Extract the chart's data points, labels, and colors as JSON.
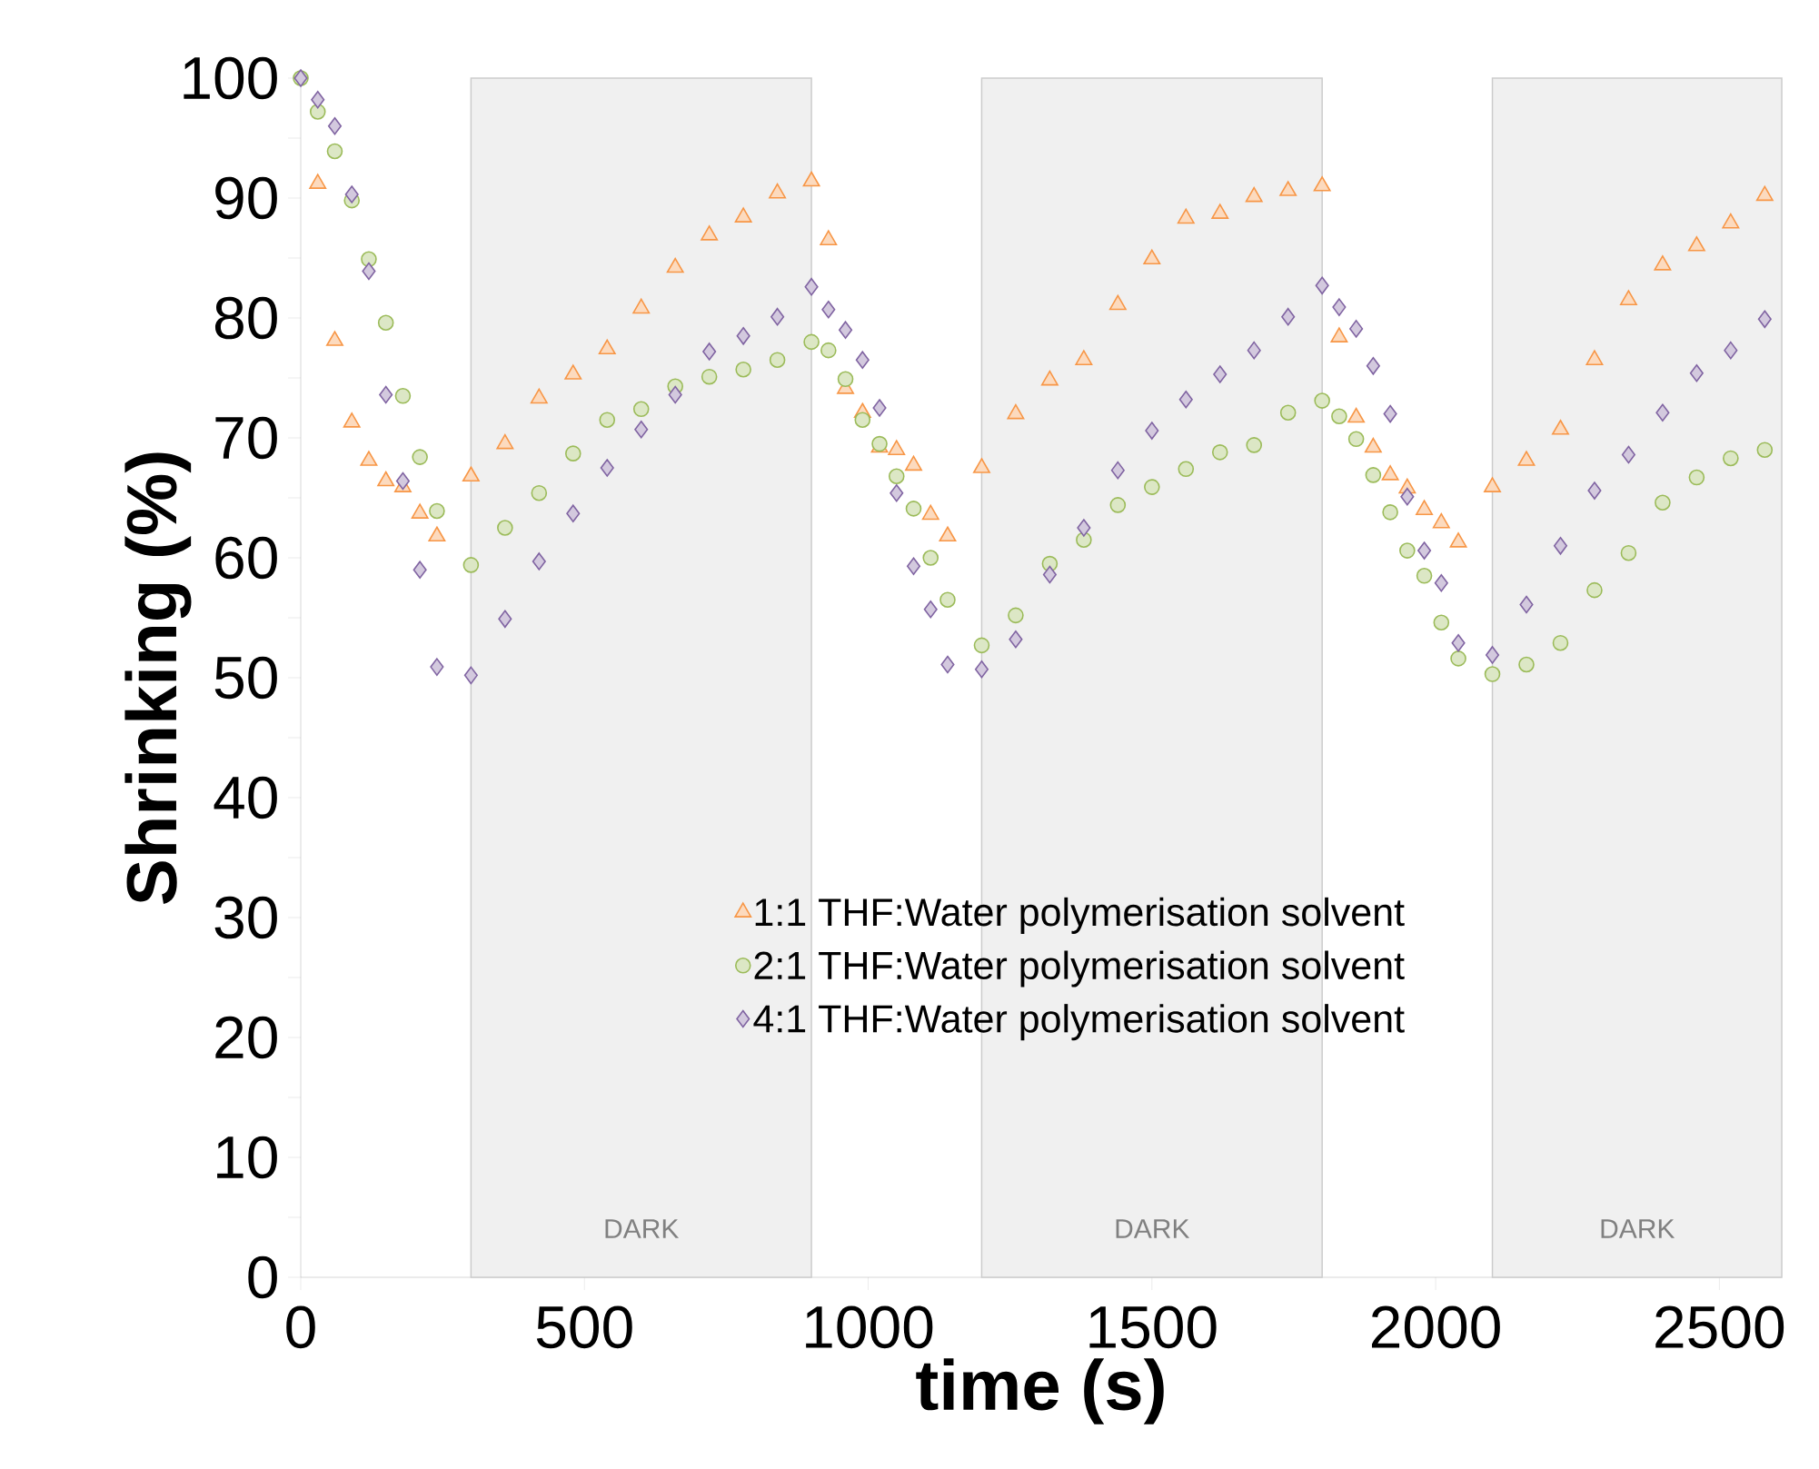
{
  "chart_data": {
    "type": "scatter",
    "xlabel": "time (s)",
    "ylabel": "Shrinking (%)",
    "xlim": [
      0,
      2610
    ],
    "ylim": [
      0,
      100
    ],
    "xticks": [
      0,
      500,
      1000,
      1500,
      2000,
      2500
    ],
    "yticks": [
      0,
      10,
      20,
      30,
      40,
      50,
      60,
      70,
      80,
      90,
      100
    ],
    "legend": "bottom",
    "grid": false,
    "bands": [
      {
        "axis": "x",
        "from": 300,
        "to": 900,
        "label": "DARK",
        "color": "#f0f0f0"
      },
      {
        "axis": "x",
        "from": 1200,
        "to": 1800,
        "label": "DARK",
        "color": "#f0f0f0"
      },
      {
        "axis": "x",
        "from": 2100,
        "to": 2610,
        "label": "DARK",
        "color": "#f0f0f0"
      }
    ],
    "x": [
      0,
      30,
      60,
      90,
      120,
      150,
      180,
      210,
      240,
      300,
      360,
      420,
      480,
      540,
      600,
      660,
      720,
      780,
      840,
      900,
      930,
      960,
      990,
      1020,
      1050,
      1080,
      1110,
      1140,
      1200,
      1260,
      1320,
      1380,
      1440,
      1500,
      1560,
      1620,
      1680,
      1740,
      1800,
      1830,
      1860,
      1890,
      1920,
      1950,
      1980,
      2010,
      2040,
      2100,
      2160,
      2220,
      2280,
      2340,
      2400,
      2460,
      2520,
      2580
    ],
    "series": [
      {
        "name": "1:1 THF:Water polymerisation solvent",
        "color": "#f79646",
        "marker": "triangle",
        "values": [
          null,
          91.2,
          78.1,
          71.3,
          68.1,
          66.4,
          65.9,
          63.7,
          61.8,
          66.8,
          69.5,
          73.3,
          75.3,
          77.4,
          80.8,
          84.2,
          86.9,
          88.4,
          90.4,
          91.4,
          86.5,
          74.1,
          72.1,
          69.2,
          69.0,
          67.7,
          63.6,
          61.8,
          67.5,
          72.0,
          74.8,
          76.5,
          81.1,
          84.9,
          88.3,
          88.7,
          90.1,
          90.6,
          91.0,
          78.4,
          71.7,
          69.2,
          66.9,
          65.8,
          64.0,
          62.9,
          61.3,
          65.9,
          68.1,
          70.7,
          76.5,
          81.5,
          84.4,
          86.0,
          87.9,
          90.2
        ]
      },
      {
        "name": "2:1 THF:Water polymerisation solvent",
        "color": "#9bbb59",
        "marker": "circle",
        "values": [
          100,
          97.2,
          93.9,
          89.8,
          84.9,
          79.6,
          73.5,
          68.4,
          63.9,
          59.4,
          62.5,
          65.4,
          68.7,
          71.5,
          72.4,
          74.3,
          75.1,
          75.7,
          76.5,
          78.0,
          77.3,
          74.9,
          71.5,
          69.5,
          66.8,
          64.1,
          60.0,
          56.5,
          52.7,
          55.2,
          59.5,
          61.5,
          64.4,
          65.9,
          67.4,
          68.8,
          69.4,
          72.1,
          73.1,
          71.8,
          69.9,
          66.9,
          63.8,
          60.6,
          58.5,
          54.6,
          51.6,
          50.3,
          51.1,
          52.9,
          57.3,
          60.4,
          64.6,
          66.7,
          68.3,
          69.0
        ]
      },
      {
        "name": "4:1 THF:Water polymerisation solvent",
        "color": "#8064a2",
        "marker": "diamond",
        "values": [
          100,
          98.2,
          96.0,
          90.3,
          83.9,
          73.6,
          66.4,
          59.0,
          50.9,
          50.2,
          54.9,
          59.7,
          63.7,
          67.5,
          70.7,
          73.6,
          77.2,
          78.5,
          80.1,
          82.6,
          80.7,
          79.0,
          76.5,
          72.5,
          65.4,
          59.3,
          55.7,
          51.1,
          50.7,
          53.2,
          58.6,
          62.5,
          67.3,
          70.6,
          73.2,
          75.3,
          77.3,
          80.1,
          82.7,
          80.9,
          79.1,
          76.0,
          72.0,
          65.1,
          60.6,
          57.9,
          52.9,
          51.9,
          56.1,
          61.0,
          65.6,
          68.6,
          72.1,
          75.4,
          77.3,
          79.9
        ]
      }
    ]
  }
}
